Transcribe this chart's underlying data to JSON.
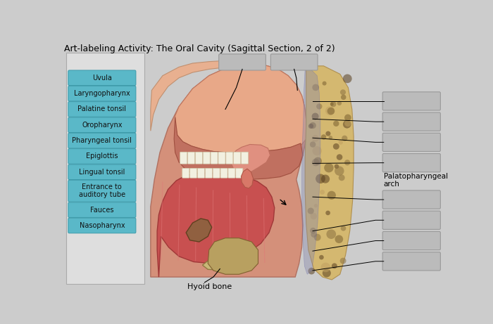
{
  "title": "Art-labeling Activity: The Oral Cavity (Sagittal Section, 2 of 2)",
  "title_fontsize": 9,
  "bg_color": "#cccccc",
  "left_panel_bg": "#dedede",
  "left_labels": [
    "Uvula",
    "Laryngopharynx",
    "Palatine tonsil",
    "Oropharynx",
    "Pharyngeal tonsil",
    "Epiglottis",
    "Lingual tonsil",
    "Entrance to\nauditory tube",
    "Fauces",
    "Nasopharynx"
  ],
  "left_box_color": "#5ab8c8",
  "left_box_text_color": "#111111",
  "right_box_color": "#bbbbbb",
  "top_box_color": "#bbbbbb",
  "palatopharyngeal_label": "Palatopharyngeal\narch",
  "hyoid_label": "Hyoid bone"
}
